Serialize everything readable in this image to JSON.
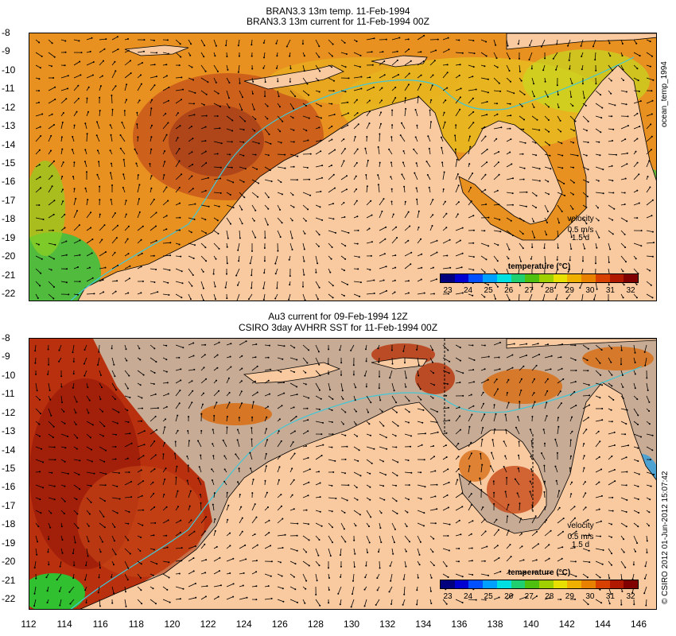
{
  "top": {
    "title1": "BRAN3.3 13m temp. 11-Feb-1994",
    "title2": "BRAN3.3 13m current for 11-Feb-1994 00Z",
    "side_label": "ocean_temp_1994",
    "velocity_label": "velocity",
    "velocity_speed": "0.5 m/s",
    "velocity_time": "1.5 d",
    "colorbar_title": "temperature (°C)"
  },
  "bottom": {
    "title1": "Au3 current for 09-Feb-1994 12Z",
    "title2": "CSIRO 3day AVHRR SST for 11-Feb-1994 00Z",
    "side_label": "© CSIRO 2012  01-Jun-2012 15:07:42",
    "velocity_label": "velocity",
    "velocity_speed": "0.5 m/s",
    "velocity_time": "1.5 d",
    "colorbar_title": "temperature (°C)"
  },
  "lat_ticks": [
    "-8",
    "-9",
    "-10",
    "-11",
    "-12",
    "-13",
    "-14",
    "-15",
    "-16",
    "-17",
    "-18",
    "-19",
    "-20",
    "-21",
    "-22"
  ],
  "lon_ticks": [
    "112",
    "114",
    "116",
    "118",
    "120",
    "122",
    "124",
    "126",
    "128",
    "130",
    "132",
    "134",
    "136",
    "138",
    "140",
    "142",
    "144",
    "146"
  ],
  "colorbar_ticks": [
    "23",
    "24",
    "25",
    "26",
    "27",
    "28",
    "29",
    "30",
    "31",
    "32"
  ],
  "colors": {
    "land": "#f9c9a0",
    "no_data": "#c8ab94",
    "warm": "#e88a1a",
    "hot": "#a81a08",
    "cool": "#44d24a",
    "coast_contour": "#40c8d8",
    "scale": [
      "#00007f",
      "#0000d0",
      "#0050ff",
      "#00a0ff",
      "#00e0e0",
      "#20d070",
      "#50c010",
      "#a0d000",
      "#e8e000",
      "#f0b000",
      "#e88000",
      "#d84000",
      "#b01800",
      "#800000"
    ]
  }
}
